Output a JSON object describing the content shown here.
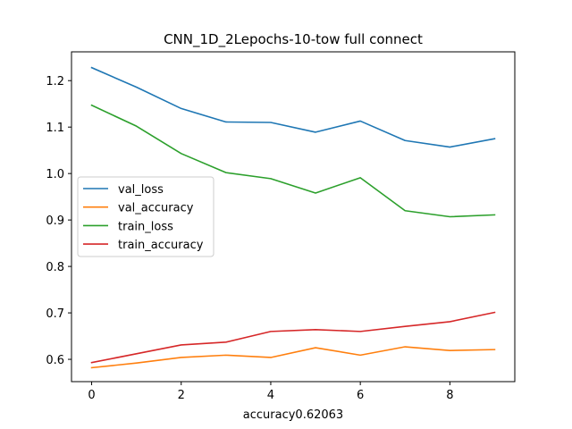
{
  "chart_data": {
    "type": "line",
    "title": "CNN_1D_2Lepochs-10-tow full connect",
    "xlabel": "accuracy0.62063",
    "ylabel": "",
    "xlim": [
      -0.45,
      9.45
    ],
    "ylim": [
      0.552,
      1.262
    ],
    "xticks": [
      0,
      2,
      4,
      6,
      8
    ],
    "yticks": [
      0.6,
      0.7,
      0.8,
      0.9,
      1.0,
      1.1,
      1.2
    ],
    "ytick_labels": [
      "0.6",
      "0.7",
      "0.8",
      "0.9",
      "1.0",
      "1.1",
      "1.2"
    ],
    "grid": false,
    "legend_position": "center-left",
    "x": [
      0,
      1,
      2,
      3,
      4,
      5,
      6,
      7,
      8,
      9
    ],
    "series": [
      {
        "name": "val_loss",
        "color": "#1f77b4",
        "values": [
          1.228,
          1.186,
          1.14,
          1.111,
          1.11,
          1.089,
          1.113,
          1.071,
          1.057,
          1.075
        ]
      },
      {
        "name": "val_accuracy",
        "color": "#ff7f0e",
        "values": [
          0.582,
          0.592,
          0.604,
          0.609,
          0.604,
          0.625,
          0.609,
          0.627,
          0.619,
          0.621
        ]
      },
      {
        "name": "train_loss",
        "color": "#2ca02c",
        "values": [
          1.147,
          1.102,
          1.043,
          1.002,
          0.989,
          0.958,
          0.991,
          0.92,
          0.907,
          0.911
        ]
      },
      {
        "name": "train_accuracy",
        "color": "#d62728",
        "values": [
          0.593,
          0.612,
          0.631,
          0.637,
          0.66,
          0.664,
          0.66,
          0.671,
          0.681,
          0.701
        ]
      }
    ]
  }
}
